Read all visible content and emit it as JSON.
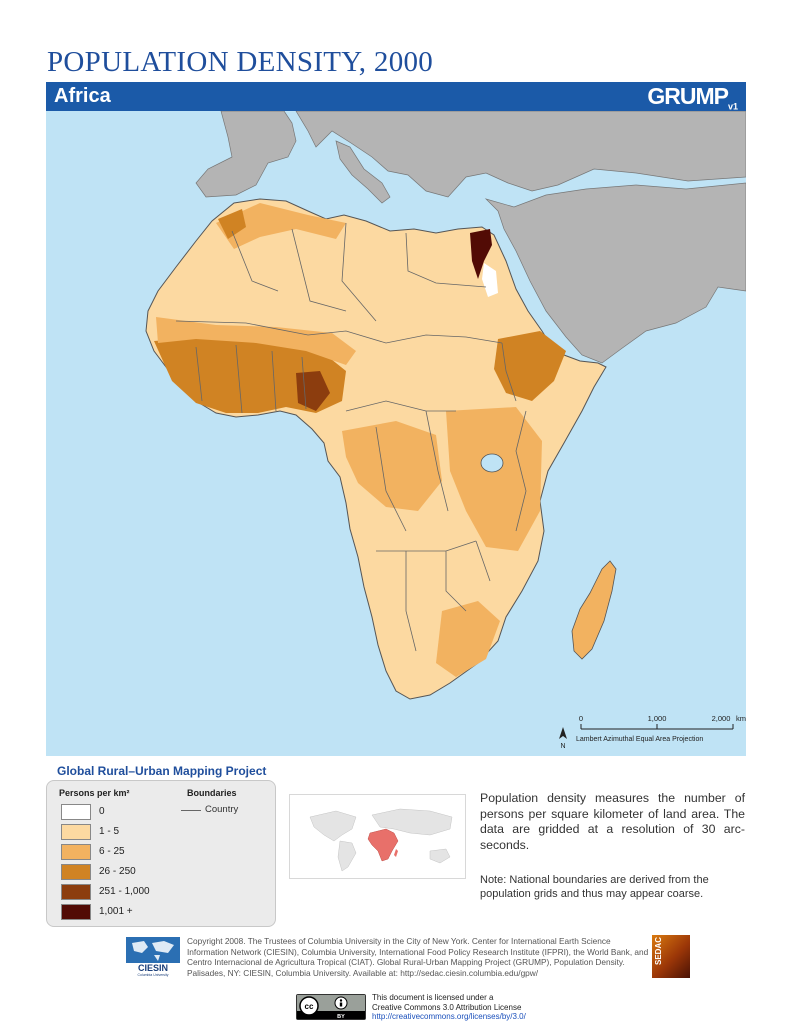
{
  "title": "POPULATION DENSITY, 2000",
  "region": "Africa",
  "brand": {
    "name": "GRUMP",
    "version": "v1"
  },
  "subtitle": "Global Rural–Urban Mapping Project",
  "colors": {
    "ocean": "#bfe3f5",
    "other_land": "#b4b4b4",
    "country_border": "#555555",
    "title_blue": "#1f4e9c",
    "banner_blue": "#1b5aa8"
  },
  "legend": {
    "density_title": "Persons per km²",
    "boundaries_title": "Boundaries",
    "boundary_label": "Country",
    "classes": [
      {
        "label": "0",
        "color": "#ffffff"
      },
      {
        "label": "1 - 5",
        "color": "#fcd9a1"
      },
      {
        "label": "6 - 25",
        "color": "#f2b260"
      },
      {
        "label": "26 - 250",
        "color": "#d08323"
      },
      {
        "label": "251 - 1,000",
        "color": "#8c3d0e"
      },
      {
        "label": "1,001 +",
        "color": "#520b05"
      }
    ]
  },
  "scale_bar": {
    "ticks": [
      "0",
      "1,000",
      "2,000"
    ],
    "unit": "km",
    "north": "N",
    "projection": "Lambert Azimuthal Equal Area Projection"
  },
  "description": "Population density measures the number of persons per square kilometer of land area. The data are gridded at a resolution of 30 arc-seconds.",
  "note": "Note: National boundaries are derived from the population grids and thus may appear coarse.",
  "ciesin_logo_text": "CIESIN",
  "ciesin_logo_sub": "Columbia University",
  "sedac_logo_text": "SEDAC",
  "copyright": "Copyright 2008. The Trustees of Columbia University in the City of New York. Center for International Earth Science Information Network (CIESIN), Columbia University, International Food Policy Research Institute (IFPRI), the World Bank, and Centro Internacional de Agricultura Tropical (CIAT). Global Rural-Urban Mapping Project (GRUMP), Population Density. Palisades, NY: CIESIN, Columbia University. Available at: http://sedac.ciesin.columbia.edu/gpw/",
  "license": {
    "badge_cc": "cc",
    "badge_by": "BY",
    "line1": "This document is licensed under a",
    "line2": "Creative Commons 3.0 Attribution License",
    "url": "http://creativecommons.org/licenses/by/3.0/"
  }
}
